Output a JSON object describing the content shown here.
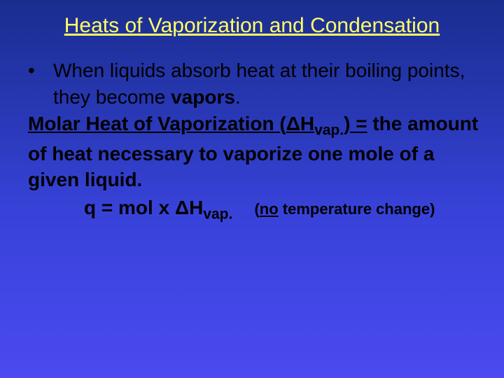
{
  "slide": {
    "title": "Heats of Vaporization and Condensation",
    "bullet_lead": "When liquids absorb heat at their boiling points, they become ",
    "bullet_emph": "vapors",
    "bullet_period": ".",
    "term_underlined": "Molar Heat of Vaporization (",
    "delta": "Δ",
    "h_sym": "H",
    "vap_sub": "vap.",
    "term_close": ") =",
    "definition": "the amount of heat necessary to vaporize one mole of a given liquid.",
    "eq_lhs": "q = mol x ",
    "note_open": "(",
    "note_no": "no",
    "note_rest": " temperature change)",
    "colors": {
      "title_color": "#ffff66",
      "body_color": "#000000",
      "bg_top": "#1a2d8f",
      "bg_bottom": "#4a4af0"
    },
    "fontsize": {
      "title": 30,
      "body": 28,
      "note": 22
    }
  }
}
